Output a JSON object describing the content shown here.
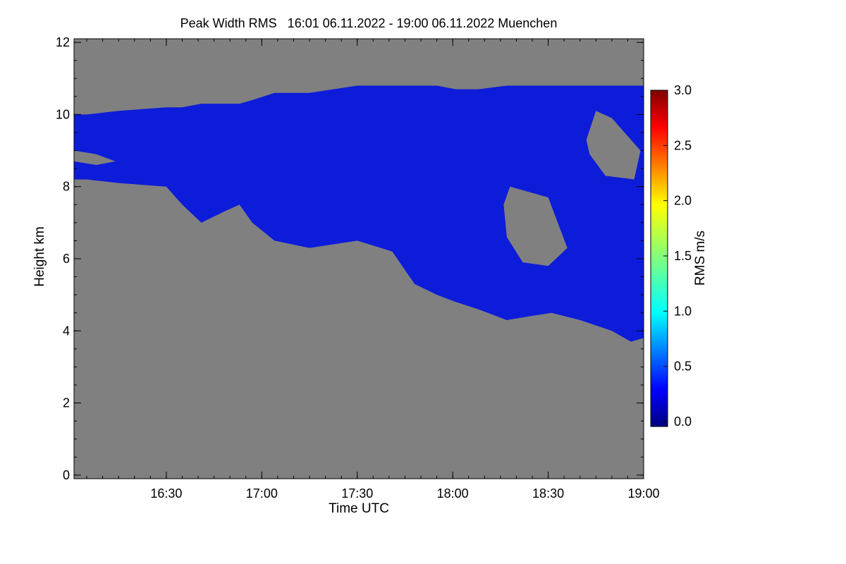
{
  "chart_data": {
    "type": "heatmap",
    "title": "Peak Width RMS   16:01 06.11.2022 - 19:00 06.11.2022 Muenchen",
    "xlabel": "Time UTC",
    "ylabel": "Height km",
    "x_ticks": [
      "16:30",
      "17:00",
      "17:30",
      "18:00",
      "18:30",
      "19:00"
    ],
    "x_tick_minutes": [
      990,
      1020,
      1050,
      1080,
      1110,
      1140
    ],
    "xlim_minutes": [
      961,
      1140
    ],
    "y_ticks": [
      "0",
      "2",
      "4",
      "6",
      "8",
      "10",
      "12"
    ],
    "ylim": [
      -0.1,
      12.1
    ],
    "colorbar": {
      "label": "RMS m/s",
      "range": [
        0.0,
        3.0
      ],
      "ticks": [
        "0.0",
        "0.5",
        "1.0",
        "1.5",
        "2.0",
        "2.5",
        "3.0"
      ],
      "colormap": "rainbow"
    },
    "background_color": "#808080",
    "cloud_color": "#0d1cd8",
    "cloud_layer": {
      "time_minutes": [
        961,
        965,
        975,
        990,
        995,
        1001,
        1008,
        1013,
        1017,
        1024,
        1035,
        1050,
        1061,
        1068,
        1075,
        1081,
        1088,
        1097,
        1104,
        1111,
        1120,
        1130,
        1136,
        1140
      ],
      "top_km": [
        10.0,
        10.0,
        10.1,
        10.2,
        10.2,
        10.3,
        10.3,
        10.3,
        10.4,
        10.6,
        10.6,
        10.8,
        10.8,
        10.8,
        10.8,
        10.7,
        10.7,
        10.8,
        10.8,
        10.8,
        10.8,
        10.8,
        10.8,
        10.8
      ],
      "base_km": [
        8.2,
        8.2,
        8.1,
        8.0,
        7.5,
        7.0,
        7.3,
        7.5,
        7.0,
        6.5,
        6.3,
        6.5,
        6.2,
        5.3,
        5.0,
        4.8,
        4.6,
        4.3,
        4.4,
        4.5,
        4.3,
        4.0,
        3.7,
        3.8
      ]
    },
    "clear_gaps": [
      {
        "time_minutes": [
          1096,
          1098,
          1102,
          1110,
          1116,
          1110,
          1102,
          1097
        ],
        "height_km": [
          7.5,
          8.0,
          7.9,
          7.7,
          6.3,
          5.8,
          5.9,
          6.6
        ]
      },
      {
        "time_minutes": [
          1122,
          1125,
          1130,
          1139,
          1137,
          1128,
          1123
        ],
        "height_km": [
          9.3,
          10.1,
          9.9,
          9.0,
          8.2,
          8.3,
          8.9
        ]
      },
      {
        "time_minutes": [
          961,
          968,
          974,
          968,
          961
        ],
        "height_km": [
          9.0,
          8.9,
          8.7,
          8.6,
          8.7
        ]
      }
    ],
    "grid": false,
    "legend": "colorbar right"
  }
}
